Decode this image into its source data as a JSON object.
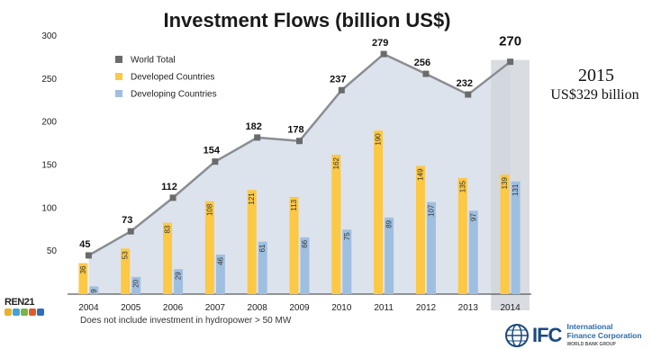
{
  "chart_data": {
    "type": "bar",
    "title": "Investment Flows (billion US$)",
    "categories": [
      "2004",
      "2005",
      "2006",
      "2007",
      "2008",
      "2009",
      "2010",
      "2011",
      "2012",
      "2013",
      "2014"
    ],
    "ylim": [
      0,
      300
    ],
    "yticks": [
      50,
      100,
      150,
      200,
      250,
      300
    ],
    "grid": false,
    "legend_position": "top-left",
    "series": [
      {
        "name": "World Total",
        "kind": "line",
        "color": "#6b6b6b",
        "values": [
          45,
          73,
          112,
          154,
          182,
          178,
          237,
          279,
          256,
          232,
          270
        ]
      },
      {
        "name": "Developed Countries",
        "kind": "bar",
        "color": "#fdc843",
        "values": [
          36,
          53,
          83,
          108,
          121,
          113,
          162,
          190,
          149,
          135,
          139
        ]
      },
      {
        "name": "Developing Countries",
        "kind": "bar",
        "color": "#9fbfe0",
        "values": [
          9,
          20,
          29,
          46,
          61,
          66,
          75,
          89,
          107,
          97,
          131
        ]
      }
    ],
    "highlight_category": "2014",
    "area_color": "#dde3ec",
    "highlight_color": "#cfd4da"
  },
  "note": "Does not include investment in hydropower > 50 MW",
  "side_note": {
    "year": "2015",
    "amount": "US$329 billion"
  },
  "logos": {
    "ren21": {
      "text": "REN21",
      "dot_colors": [
        "#e9b22a",
        "#3fa3d6",
        "#7bb346",
        "#e05a2b",
        "#2c6fb5"
      ]
    },
    "ifc": {
      "mark": "IFC",
      "line1": "International",
      "line2": "Finance Corporation",
      "line3": "WORLD BANK GROUP"
    }
  }
}
